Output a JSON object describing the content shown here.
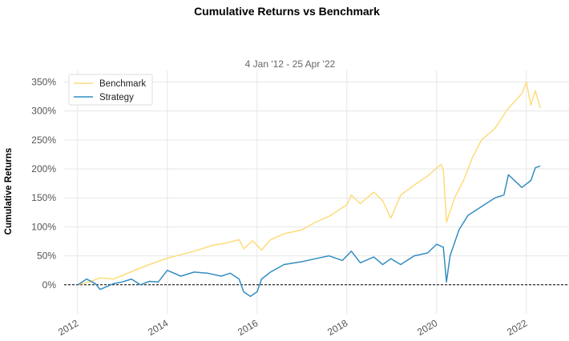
{
  "chart_data": {
    "type": "line",
    "title": "Cumulative Returns vs Benchmark",
    "subtitle": "4 Jan '12 - 25 Apr '22",
    "ylabel": "Cumulative Returns",
    "xlabel": "",
    "xlim": [
      2011.7,
      2022.95
    ],
    "ylim": [
      -0.5,
      3.7
    ],
    "x_ticks": [
      2012,
      2014,
      2016,
      2018,
      2020,
      2022
    ],
    "x_tick_labels": [
      "2012",
      "2014",
      "2016",
      "2018",
      "2020",
      "2022"
    ],
    "y_ticks": [
      0,
      0.5,
      1,
      1.5,
      2,
      2.5,
      3,
      3.5
    ],
    "y_tick_labels": [
      "0%",
      "50%",
      "100%",
      "150%",
      "200%",
      "250%",
      "300%",
      "350%"
    ],
    "grid": true,
    "legend_position": "top-left",
    "baseline": 0,
    "series": [
      {
        "name": "Benchmark",
        "color": "#fddc7a",
        "x": [
          2012.01,
          2012.3,
          2012.5,
          2012.8,
          2013.0,
          2013.3,
          2013.6,
          2014.0,
          2014.3,
          2014.6,
          2015.0,
          2015.3,
          2015.6,
          2015.7,
          2015.9,
          2016.1,
          2016.3,
          2016.6,
          2017.0,
          2017.3,
          2017.6,
          2018.0,
          2018.1,
          2018.3,
          2018.6,
          2018.8,
          2018.98,
          2019.2,
          2019.5,
          2019.8,
          2020.1,
          2020.15,
          2020.22,
          2020.4,
          2020.6,
          2020.8,
          2021.0,
          2021.3,
          2021.6,
          2021.9,
          2022.0,
          2022.1,
          2022.2,
          2022.31
        ],
        "y": [
          0.0,
          0.06,
          0.12,
          0.1,
          0.16,
          0.26,
          0.35,
          0.46,
          0.52,
          0.58,
          0.68,
          0.72,
          0.78,
          0.62,
          0.76,
          0.6,
          0.78,
          0.88,
          0.95,
          1.08,
          1.18,
          1.38,
          1.55,
          1.4,
          1.6,
          1.45,
          1.15,
          1.55,
          1.72,
          1.88,
          2.08,
          1.98,
          1.08,
          1.5,
          1.8,
          2.2,
          2.5,
          2.7,
          3.05,
          3.3,
          3.5,
          3.1,
          3.35,
          3.05
        ]
      },
      {
        "name": "Strategy",
        "color": "#348dc1",
        "x": [
          2012.01,
          2012.2,
          2012.4,
          2012.5,
          2012.8,
          2013.0,
          2013.2,
          2013.4,
          2013.6,
          2013.8,
          2014.0,
          2014.3,
          2014.6,
          2014.9,
          2015.2,
          2015.4,
          2015.6,
          2015.7,
          2015.85,
          2016.0,
          2016.1,
          2016.3,
          2016.6,
          2017.0,
          2017.3,
          2017.6,
          2017.9,
          2018.1,
          2018.3,
          2018.6,
          2018.8,
          2018.98,
          2019.2,
          2019.5,
          2019.8,
          2020.0,
          2020.15,
          2020.22,
          2020.3,
          2020.5,
          2020.7,
          2021.0,
          2021.3,
          2021.5,
          2021.6,
          2021.9,
          2022.1,
          2022.2,
          2022.31
        ],
        "y": [
          0.0,
          0.1,
          0.02,
          -0.08,
          0.02,
          0.05,
          0.1,
          0.0,
          0.06,
          0.05,
          0.25,
          0.15,
          0.22,
          0.2,
          0.15,
          0.2,
          0.1,
          -0.12,
          -0.2,
          -0.12,
          0.1,
          0.22,
          0.35,
          0.4,
          0.45,
          0.5,
          0.42,
          0.58,
          0.38,
          0.48,
          0.35,
          0.45,
          0.35,
          0.5,
          0.55,
          0.7,
          0.65,
          0.05,
          0.5,
          0.95,
          1.2,
          1.35,
          1.5,
          1.55,
          1.9,
          1.68,
          1.8,
          2.02,
          2.05
        ]
      }
    ]
  }
}
